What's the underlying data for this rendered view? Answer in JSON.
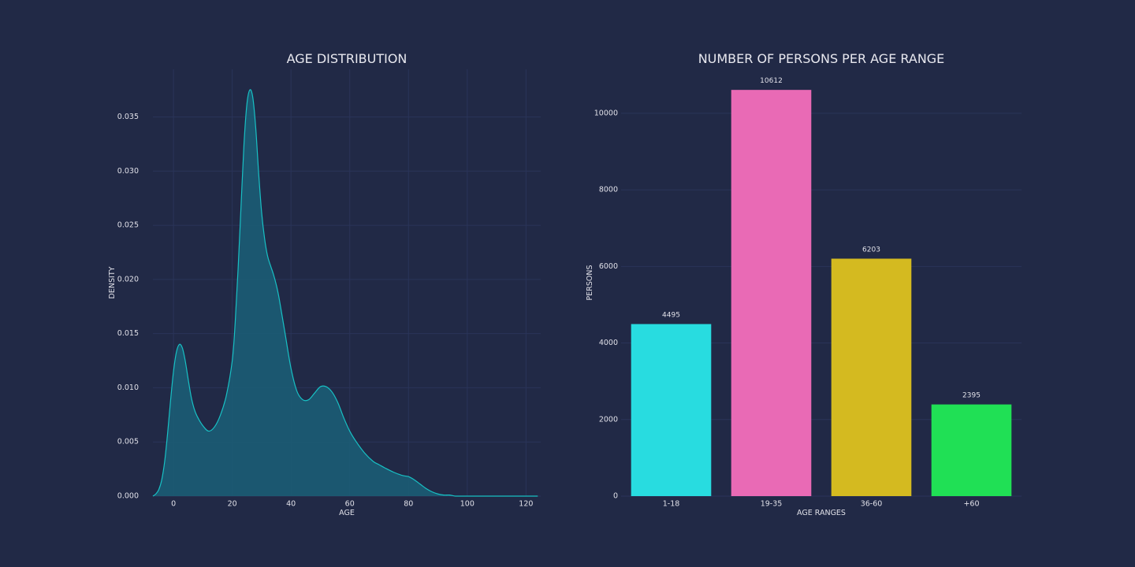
{
  "colors": {
    "background": "#212946",
    "grid": "#2A3459",
    "kde_line": "#18c0c4",
    "kde_fill": "#1b5c74"
  },
  "chart_data": [
    {
      "type": "area",
      "title": "AGE DISTRIBUTION",
      "xlabel": "AGE",
      "ylabel": "DENSITY",
      "xlim": [
        -7,
        125
      ],
      "ylim": [
        0,
        0.0394
      ],
      "xticks": [
        0,
        20,
        40,
        60,
        80,
        100,
        120
      ],
      "yticks": [
        0.0,
        0.005,
        0.01,
        0.015,
        0.02,
        0.025,
        0.03,
        0.035
      ],
      "ytick_labels": [
        "0.000",
        "0.005",
        "0.010",
        "0.015",
        "0.020",
        "0.025",
        "0.030",
        "0.035"
      ],
      "grid": true,
      "x": [
        -7,
        -6,
        -5,
        -4,
        -3,
        -2,
        -1,
        0,
        1,
        2,
        3,
        4,
        5,
        6,
        7,
        8,
        10,
        12,
        14,
        16,
        18,
        20,
        21,
        22,
        23,
        24,
        25,
        26,
        27,
        28,
        29,
        30,
        31,
        32,
        33,
        34,
        35,
        36,
        38,
        40,
        42,
        44,
        46,
        48,
        50,
        52,
        54,
        56,
        58,
        60,
        62,
        65,
        68,
        70,
        72,
        75,
        78,
        80,
        82,
        84,
        86,
        88,
        90,
        92,
        94,
        96,
        98,
        100,
        105,
        110,
        115,
        120,
        124
      ],
      "y": [
        0.0,
        0.0002,
        0.0006,
        0.0015,
        0.0032,
        0.0058,
        0.0088,
        0.0115,
        0.0133,
        0.014,
        0.0137,
        0.0125,
        0.0108,
        0.0092,
        0.0081,
        0.0074,
        0.0065,
        0.006,
        0.0064,
        0.0075,
        0.0093,
        0.0125,
        0.016,
        0.021,
        0.0268,
        0.0325,
        0.0362,
        0.0375,
        0.0368,
        0.034,
        0.0298,
        0.0262,
        0.0238,
        0.0222,
        0.0213,
        0.0205,
        0.0195,
        0.0182,
        0.015,
        0.0118,
        0.0097,
        0.0089,
        0.0089,
        0.0095,
        0.0101,
        0.0101,
        0.0096,
        0.0086,
        0.0072,
        0.006,
        0.0051,
        0.004,
        0.0032,
        0.0029,
        0.0026,
        0.0022,
        0.0019,
        0.0018,
        0.0015,
        0.0011,
        0.0007,
        0.0004,
        0.0002,
        0.0001,
        0.0001,
        0.0,
        0.0,
        0.0,
        0.0,
        0.0,
        0.0,
        0.0,
        0.0
      ]
    },
    {
      "type": "bar",
      "title": "NUMBER OF PERSONS PER AGE RANGE",
      "xlabel": "AGE RANGES",
      "ylabel": "PERSONS",
      "categories": [
        "1-18",
        "19-35",
        "36-60",
        "+60"
      ],
      "values": [
        4495,
        10612,
        6203,
        2395
      ],
      "value_labels": [
        "4495",
        "10612",
        "6203",
        "2395"
      ],
      "colors": [
        "#28dce0",
        "#e96ab5",
        "#d4ba20",
        "#20e055"
      ],
      "ylim": [
        0,
        11150
      ],
      "yticks": [
        0,
        2000,
        4000,
        6000,
        8000,
        10000
      ],
      "ytick_labels": [
        "0",
        "2000",
        "4000",
        "6000",
        "8000",
        "10000"
      ],
      "grid": true
    }
  ]
}
